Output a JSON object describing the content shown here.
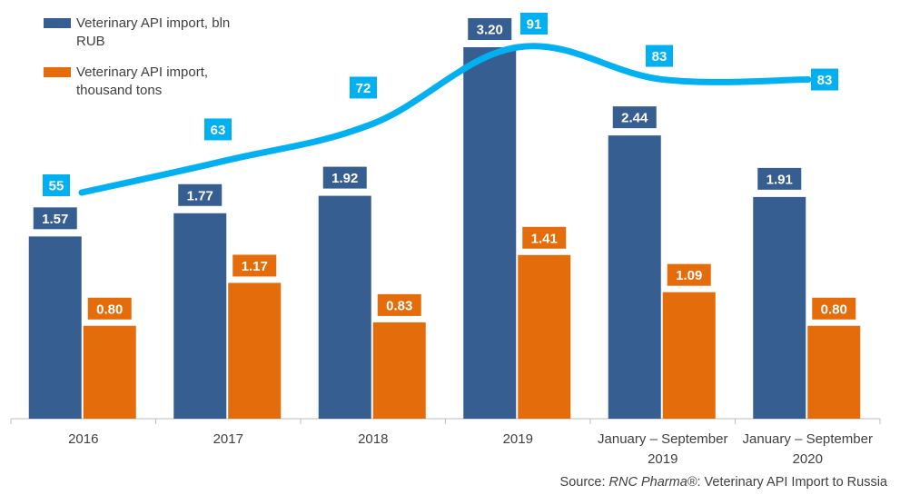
{
  "chart_data": {
    "type": "bar",
    "categories": [
      "2016",
      "2017",
      "2018",
      "2019",
      "January – September 2019",
      "January – September 2020"
    ],
    "category_lines": [
      [
        "2016"
      ],
      [
        "2017"
      ],
      [
        "2018"
      ],
      [
        "2019"
      ],
      [
        "January – September",
        "2019"
      ],
      [
        "January – September",
        "2020"
      ]
    ],
    "series": [
      {
        "name": "Veterinary API import, bln RUB",
        "type": "bar",
        "color": "#365e91",
        "values": [
          1.57,
          1.77,
          1.92,
          3.2,
          2.44,
          1.91
        ],
        "labels": [
          "1.57",
          "1.77",
          "1.92",
          "3.20",
          "2.44",
          "1.91"
        ]
      },
      {
        "name": "Veterinary API import, thousand tons",
        "type": "bar",
        "color": "#e46c0a",
        "values": [
          0.8,
          1.17,
          0.83,
          1.41,
          1.09,
          0.8
        ],
        "labels": [
          "0.80",
          "1.17",
          "0.83",
          "1.41",
          "1.09",
          "0.80"
        ]
      },
      {
        "name": "",
        "type": "line",
        "color": "#00b0f0",
        "smooth": true,
        "values": [
          55,
          63,
          72,
          91,
          83,
          83
        ],
        "labels": [
          "55",
          "63",
          "72",
          "91",
          "83",
          "83"
        ]
      }
    ],
    "bar_ylim": [
      0,
      3.5
    ],
    "line_ylim": [
      0,
      100
    ],
    "legend_position": "top-left",
    "grid": false
  },
  "legend": {
    "item1": "Veterinary API import, bln RUB",
    "item2": "Veterinary API import, thousand tons"
  },
  "source": {
    "prefix": "Source: ",
    "brand": "RNC Pharma®",
    "suffix": ": Veterinary API Import to Russia"
  }
}
